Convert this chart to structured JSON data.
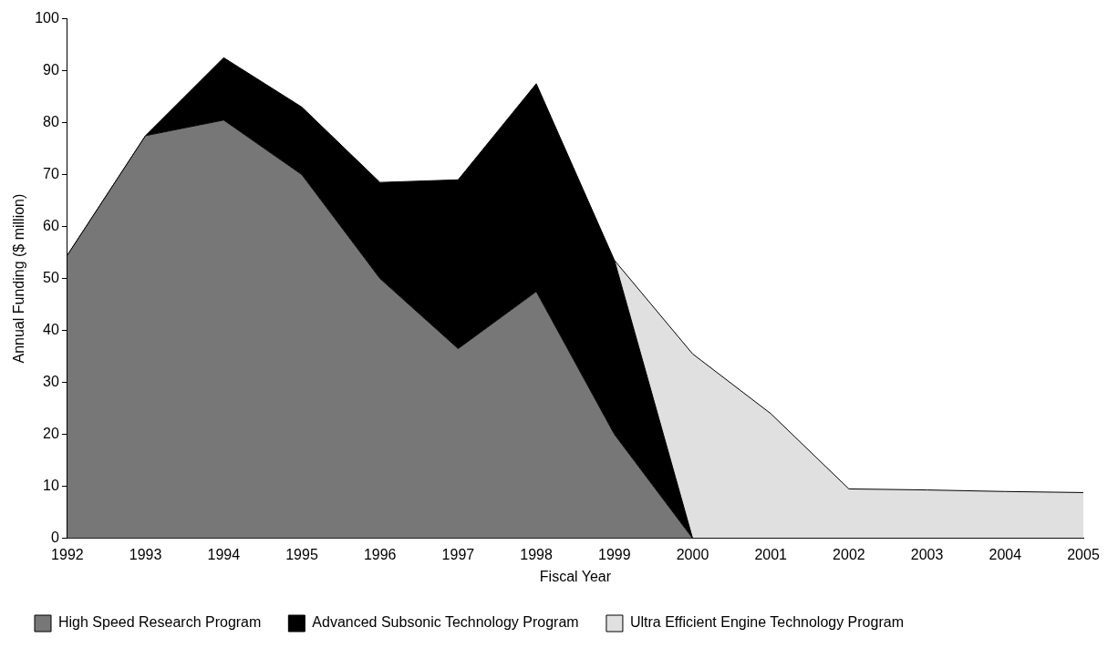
{
  "chart_data": {
    "type": "area",
    "stacked": true,
    "xlabel": "Fiscal Year",
    "ylabel": "Annual Funding ($ million)",
    "categories": [
      "1992",
      "1993",
      "1994",
      "1995",
      "1996",
      "1997",
      "1998",
      "1999",
      "2000",
      "2001",
      "2002",
      "2003",
      "2004",
      "2005"
    ],
    "series": [
      {
        "name": "High Speed Research Program",
        "color": "#777777",
        "values": [
          54.5,
          77.5,
          80.5,
          70,
          50,
          36.5,
          47.5,
          20,
          0,
          0,
          0,
          0,
          0,
          0
        ]
      },
      {
        "name": "Advanced Subsonic Technology Program",
        "color": "#000000",
        "values": [
          0,
          0,
          12,
          13,
          18.5,
          32.5,
          40,
          33.5,
          0,
          0,
          0,
          0,
          0,
          0
        ]
      },
      {
        "name": "Ultra Efficient Engine Technology Program",
        "color": "#e0e0e0",
        "values": [
          null,
          null,
          null,
          null,
          null,
          null,
          null,
          0,
          35.5,
          24,
          9.5,
          9.3,
          9,
          8.8
        ]
      }
    ],
    "ylim": [
      0,
      100
    ],
    "yticks": [
      0,
      10,
      20,
      30,
      40,
      50,
      60,
      70,
      80,
      90,
      100
    ],
    "grid": false,
    "legend": "bottom"
  }
}
